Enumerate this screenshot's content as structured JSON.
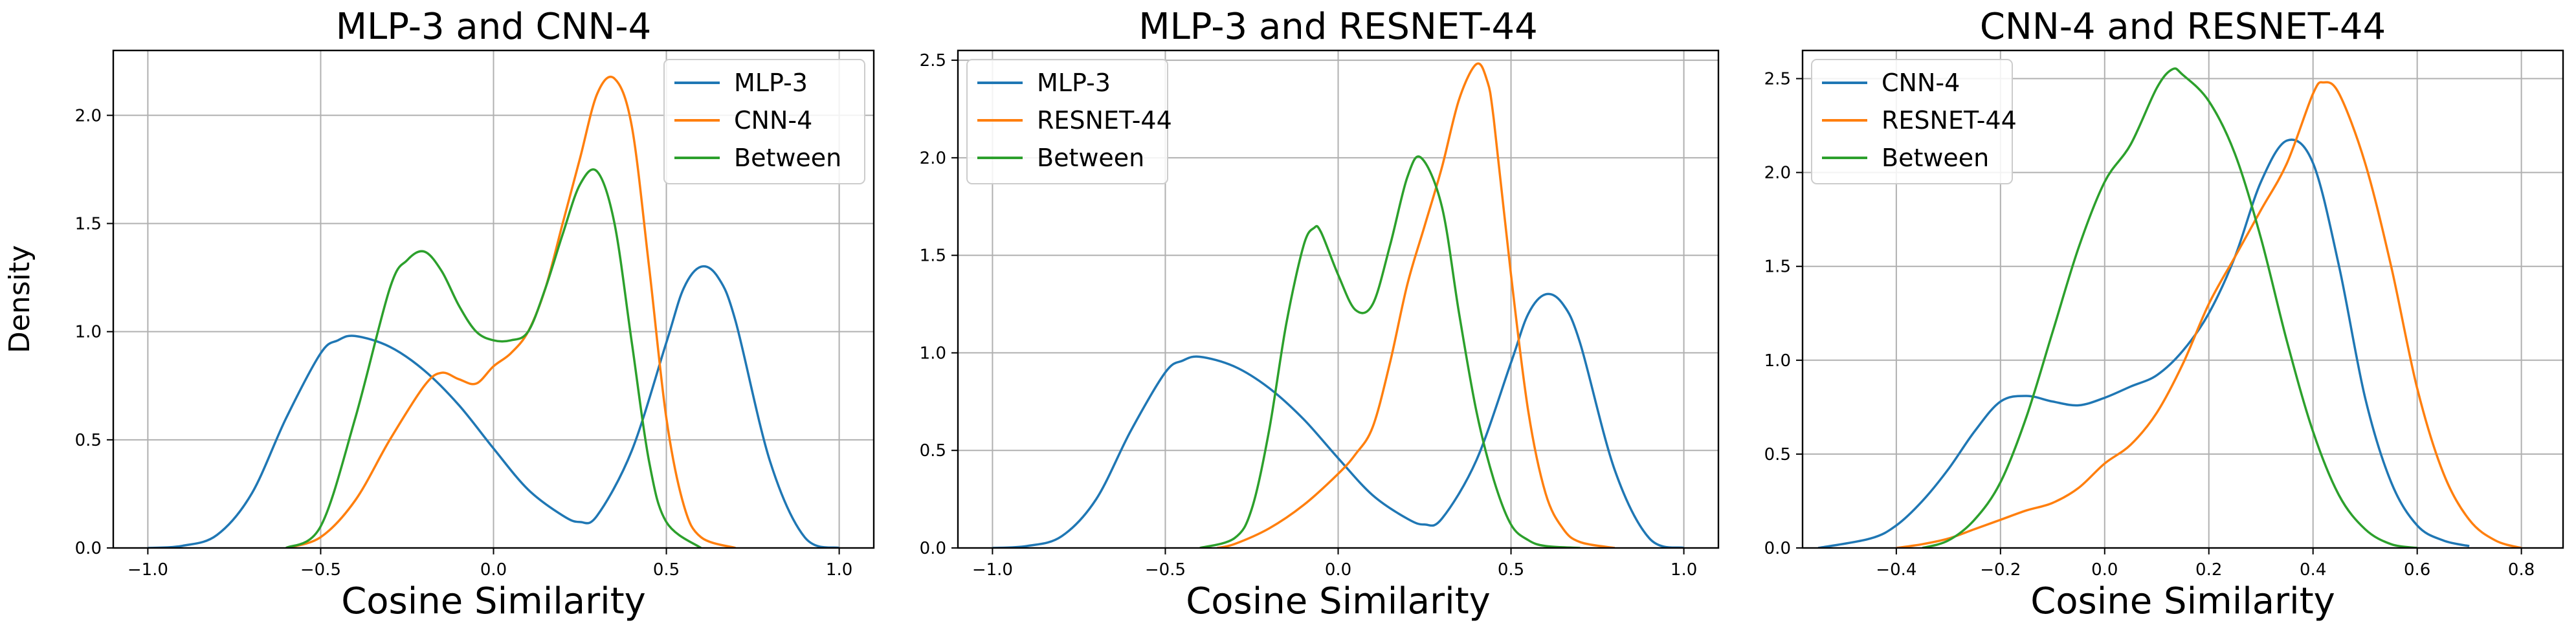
{
  "chart_data": [
    {
      "type": "line",
      "title": "MLP-3 and CNN-4",
      "xlabel": "Cosine Similarity",
      "ylabel": "Density",
      "xlim": [
        -1.1,
        1.1
      ],
      "ylim": [
        0,
        2.3
      ],
      "xticks": [
        -1.0,
        -0.5,
        0.0,
        0.5,
        1.0
      ],
      "xtick_labels": [
        "−1.0",
        "−0.5",
        "0.0",
        "0.5",
        "1.0"
      ],
      "yticks": [
        0.0,
        0.5,
        1.0,
        1.5,
        2.0
      ],
      "ytick_labels": [
        "0.0",
        "0.5",
        "1.0",
        "1.5",
        "2.0"
      ],
      "grid": true,
      "legend_position": "top-right",
      "series": [
        {
          "name": "MLP-3",
          "color": "#1f77b4",
          "x": [
            -1.0,
            -0.9,
            -0.8,
            -0.7,
            -0.6,
            -0.5,
            -0.45,
            -0.4,
            -0.3,
            -0.2,
            -0.1,
            0.0,
            0.1,
            0.2,
            0.25,
            0.3,
            0.4,
            0.5,
            0.55,
            0.6,
            0.65,
            0.7,
            0.8,
            0.9,
            1.0
          ],
          "y": [
            0.0,
            0.01,
            0.06,
            0.25,
            0.6,
            0.9,
            0.96,
            0.98,
            0.93,
            0.82,
            0.66,
            0.46,
            0.27,
            0.15,
            0.12,
            0.15,
            0.45,
            0.95,
            1.2,
            1.3,
            1.25,
            1.05,
            0.4,
            0.05,
            0.0
          ]
        },
        {
          "name": "CNN-4",
          "color": "#ff7f0e",
          "x": [
            -0.6,
            -0.5,
            -0.4,
            -0.3,
            -0.2,
            -0.15,
            -0.1,
            -0.05,
            0.0,
            0.05,
            0.1,
            0.15,
            0.2,
            0.25,
            0.3,
            0.35,
            0.4,
            0.45,
            0.5,
            0.55,
            0.6,
            0.7
          ],
          "y": [
            0.0,
            0.05,
            0.22,
            0.5,
            0.75,
            0.81,
            0.78,
            0.76,
            0.84,
            0.9,
            1.0,
            1.2,
            1.5,
            1.8,
            2.1,
            2.17,
            1.95,
            1.3,
            0.6,
            0.2,
            0.05,
            0.0
          ]
        },
        {
          "name": "Between",
          "color": "#2ca02c",
          "x": [
            -0.6,
            -0.5,
            -0.4,
            -0.3,
            -0.25,
            -0.2,
            -0.15,
            -0.1,
            -0.05,
            0.0,
            0.05,
            0.1,
            0.15,
            0.2,
            0.25,
            0.3,
            0.35,
            0.4,
            0.45,
            0.5,
            0.6
          ],
          "y": [
            0.0,
            0.1,
            0.6,
            1.2,
            1.33,
            1.37,
            1.28,
            1.12,
            1.0,
            0.96,
            0.96,
            1.0,
            1.2,
            1.45,
            1.68,
            1.74,
            1.5,
            0.95,
            0.4,
            0.12,
            0.0
          ]
        }
      ]
    },
    {
      "type": "line",
      "title": "MLP-3 and RESNET-44",
      "xlabel": "Cosine Similarity",
      "ylabel": "",
      "xlim": [
        -1.1,
        1.1
      ],
      "ylim": [
        0,
        2.55
      ],
      "xticks": [
        -1.0,
        -0.5,
        0.0,
        0.5,
        1.0
      ],
      "xtick_labels": [
        "−1.0",
        "−0.5",
        "0.0",
        "0.5",
        "1.0"
      ],
      "yticks": [
        0.0,
        0.5,
        1.0,
        1.5,
        2.0,
        2.5
      ],
      "ytick_labels": [
        "0.0",
        "0.5",
        "1.0",
        "1.5",
        "2.0",
        "2.5"
      ],
      "grid": true,
      "legend_position": "top-left",
      "series": [
        {
          "name": "MLP-3",
          "color": "#1f77b4",
          "x": [
            -1.0,
            -0.9,
            -0.8,
            -0.7,
            -0.6,
            -0.5,
            -0.45,
            -0.4,
            -0.3,
            -0.2,
            -0.1,
            0.0,
            0.1,
            0.2,
            0.25,
            0.3,
            0.4,
            0.5,
            0.55,
            0.6,
            0.65,
            0.7,
            0.8,
            0.9,
            1.0
          ],
          "y": [
            0.0,
            0.01,
            0.06,
            0.25,
            0.6,
            0.9,
            0.96,
            0.98,
            0.93,
            0.82,
            0.66,
            0.46,
            0.27,
            0.15,
            0.12,
            0.15,
            0.45,
            0.95,
            1.2,
            1.3,
            1.25,
            1.05,
            0.4,
            0.05,
            0.0
          ]
        },
        {
          "name": "RESNET-44",
          "color": "#ff7f0e",
          "x": [
            -0.35,
            -0.3,
            -0.2,
            -0.1,
            0.0,
            0.05,
            0.1,
            0.15,
            0.2,
            0.25,
            0.3,
            0.35,
            0.4,
            0.43,
            0.45,
            0.5,
            0.55,
            0.6,
            0.65,
            0.7,
            0.8
          ],
          "y": [
            0.0,
            0.02,
            0.1,
            0.22,
            0.38,
            0.48,
            0.62,
            0.95,
            1.35,
            1.65,
            1.95,
            2.3,
            2.48,
            2.4,
            2.2,
            1.4,
            0.7,
            0.28,
            0.1,
            0.03,
            0.0
          ]
        },
        {
          "name": "Between",
          "color": "#2ca02c",
          "x": [
            -0.4,
            -0.3,
            -0.25,
            -0.2,
            -0.15,
            -0.1,
            -0.07,
            -0.05,
            0.0,
            0.05,
            0.1,
            0.15,
            0.2,
            0.24,
            0.3,
            0.35,
            0.4,
            0.45,
            0.5,
            0.55,
            0.6,
            0.7
          ],
          "y": [
            0.0,
            0.05,
            0.2,
            0.6,
            1.15,
            1.55,
            1.64,
            1.62,
            1.4,
            1.22,
            1.25,
            1.55,
            1.9,
            2.0,
            1.75,
            1.2,
            0.7,
            0.35,
            0.12,
            0.04,
            0.01,
            0.0
          ]
        }
      ]
    },
    {
      "type": "line",
      "title": "CNN-4 and RESNET-44",
      "xlabel": "Cosine Similarity",
      "ylabel": "",
      "xlim": [
        -0.58,
        0.88
      ],
      "ylim": [
        0,
        2.65
      ],
      "xticks": [
        -0.4,
        -0.2,
        0.0,
        0.2,
        0.4,
        0.6,
        0.8
      ],
      "xtick_labels": [
        "−0.4",
        "−0.2",
        "0.0",
        "0.2",
        "0.4",
        "0.6",
        "0.8"
      ],
      "yticks": [
        0.0,
        0.5,
        1.0,
        1.5,
        2.0,
        2.5
      ],
      "ytick_labels": [
        "0.0",
        "0.5",
        "1.0",
        "1.5",
        "2.0",
        "2.5"
      ],
      "grid": true,
      "legend_position": "top-left",
      "series": [
        {
          "name": "CNN-4",
          "color": "#1f77b4",
          "x": [
            -0.55,
            -0.45,
            -0.4,
            -0.35,
            -0.3,
            -0.25,
            -0.2,
            -0.15,
            -0.1,
            -0.05,
            0.0,
            0.05,
            0.1,
            0.15,
            0.2,
            0.25,
            0.3,
            0.35,
            0.4,
            0.45,
            0.5,
            0.55,
            0.6,
            0.65,
            0.7
          ],
          "y": [
            0.0,
            0.05,
            0.12,
            0.25,
            0.42,
            0.62,
            0.78,
            0.81,
            0.78,
            0.76,
            0.8,
            0.86,
            0.92,
            1.05,
            1.25,
            1.55,
            1.95,
            2.17,
            2.05,
            1.5,
            0.8,
            0.35,
            0.12,
            0.04,
            0.01
          ]
        },
        {
          "name": "RESNET-44",
          "color": "#ff7f0e",
          "x": [
            -0.4,
            -0.35,
            -0.3,
            -0.25,
            -0.2,
            -0.15,
            -0.1,
            -0.05,
            0.0,
            0.05,
            0.1,
            0.15,
            0.2,
            0.25,
            0.3,
            0.35,
            0.4,
            0.42,
            0.45,
            0.5,
            0.55,
            0.6,
            0.65,
            0.7,
            0.75,
            0.8
          ],
          "y": [
            0.0,
            0.02,
            0.05,
            0.1,
            0.15,
            0.2,
            0.24,
            0.32,
            0.45,
            0.55,
            0.72,
            0.98,
            1.3,
            1.55,
            1.8,
            2.05,
            2.42,
            2.48,
            2.42,
            2.05,
            1.5,
            0.85,
            0.4,
            0.15,
            0.04,
            0.0
          ]
        },
        {
          "name": "Between",
          "color": "#2ca02c",
          "x": [
            -0.35,
            -0.3,
            -0.25,
            -0.2,
            -0.15,
            -0.1,
            -0.05,
            0.0,
            0.05,
            0.1,
            0.13,
            0.15,
            0.2,
            0.25,
            0.3,
            0.35,
            0.4,
            0.45,
            0.5,
            0.55,
            0.6
          ],
          "y": [
            0.0,
            0.04,
            0.15,
            0.35,
            0.7,
            1.15,
            1.6,
            1.95,
            2.15,
            2.45,
            2.55,
            2.52,
            2.38,
            2.1,
            1.65,
            1.1,
            0.62,
            0.28,
            0.1,
            0.02,
            0.0
          ]
        }
      ]
    }
  ]
}
